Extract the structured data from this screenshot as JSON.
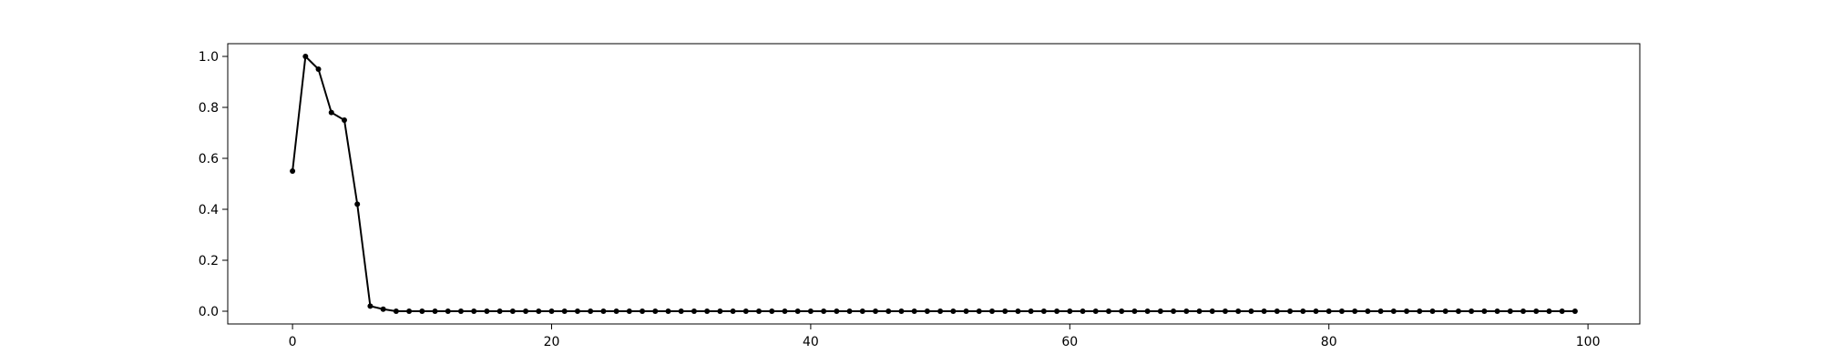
{
  "chart_data": {
    "type": "line",
    "title": "",
    "xlabel": "",
    "ylabel": "",
    "xlim": [
      -5,
      104
    ],
    "ylim": [
      -0.05,
      1.05
    ],
    "grid": false,
    "legend": "none",
    "x_ticks": [
      0,
      20,
      40,
      60,
      80,
      100
    ],
    "x_tick_labels": [
      "0",
      "20",
      "40",
      "60",
      "80",
      "100"
    ],
    "y_ticks": [
      0.0,
      0.2,
      0.4,
      0.6,
      0.8,
      1.0
    ],
    "y_tick_labels": [
      "0.0",
      "0.2",
      "0.4",
      "0.6",
      "0.8",
      "1.0"
    ],
    "series": [
      {
        "color": "#000000",
        "marker": "dot",
        "x": [
          0,
          1,
          2,
          3,
          4,
          5,
          6,
          7,
          8,
          9,
          10,
          11,
          12,
          13,
          14,
          15,
          16,
          17,
          18,
          19,
          20,
          21,
          22,
          23,
          24,
          25,
          26,
          27,
          28,
          29,
          30,
          31,
          32,
          33,
          34,
          35,
          36,
          37,
          38,
          39,
          40,
          41,
          42,
          43,
          44,
          45,
          46,
          47,
          48,
          49,
          50,
          51,
          52,
          53,
          54,
          55,
          56,
          57,
          58,
          59,
          60,
          61,
          62,
          63,
          64,
          65,
          66,
          67,
          68,
          69,
          70,
          71,
          72,
          73,
          74,
          75,
          76,
          77,
          78,
          79,
          80,
          81,
          82,
          83,
          84,
          85,
          86,
          87,
          88,
          89,
          90,
          91,
          92,
          93,
          94,
          95,
          96,
          97,
          98,
          99
        ],
        "y": [
          0.55,
          1.0,
          0.95,
          0.78,
          0.75,
          0.42,
          0.02,
          0.008,
          0,
          0,
          0,
          0,
          0,
          0,
          0,
          0,
          0,
          0,
          0,
          0,
          0,
          0,
          0,
          0,
          0,
          0,
          0,
          0,
          0,
          0,
          0,
          0,
          0,
          0,
          0,
          0,
          0,
          0,
          0,
          0,
          0,
          0,
          0,
          0,
          0,
          0,
          0,
          0,
          0,
          0,
          0,
          0,
          0,
          0,
          0,
          0,
          0,
          0,
          0,
          0,
          0,
          0,
          0,
          0,
          0,
          0,
          0,
          0,
          0,
          0,
          0,
          0,
          0,
          0,
          0,
          0,
          0,
          0,
          0,
          0,
          0,
          0,
          0,
          0,
          0,
          0,
          0,
          0,
          0,
          0,
          0,
          0,
          0,
          0,
          0,
          0,
          0,
          0,
          0,
          0
        ]
      }
    ]
  }
}
